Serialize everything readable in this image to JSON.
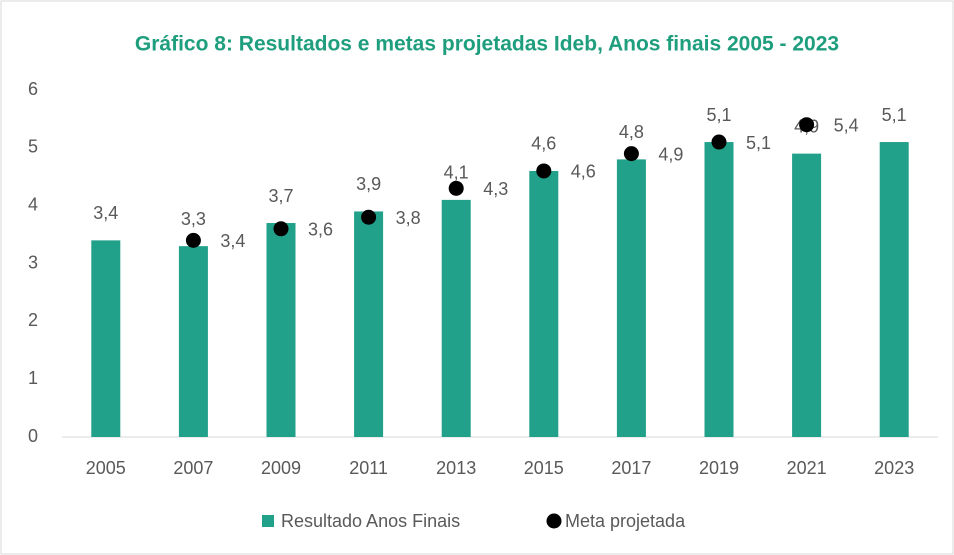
{
  "chart_data": {
    "type": "bar",
    "title": "Gráfico 8: Resultados e metas projetadas Ideb, Anos finais 2005 - 2023",
    "categories": [
      "2005",
      "2007",
      "2009",
      "2011",
      "2013",
      "2015",
      "2017",
      "2019",
      "2021",
      "2023"
    ],
    "series": [
      {
        "name": "Resultado Anos Finais",
        "type": "bar",
        "color": "#21a08a",
        "values": [
          3.4,
          3.3,
          3.7,
          3.9,
          4.1,
          4.6,
          4.8,
          5.1,
          4.9,
          5.1
        ],
        "value_labels": [
          "3,4",
          "3,3",
          "3,7",
          "3,9",
          "4,1",
          "4,6",
          "4,8",
          "5,1",
          "4,9",
          "5,1"
        ]
      },
      {
        "name": "Meta projetada",
        "type": "scatter",
        "color": "#000000",
        "values": [
          null,
          3.4,
          3.6,
          3.8,
          4.3,
          4.6,
          4.9,
          5.1,
          5.4,
          null
        ],
        "value_labels": [
          null,
          "3,4",
          "3,6",
          "3,8",
          "4,3",
          "4,6",
          "4,9",
          "5,1",
          "5,4",
          null
        ]
      }
    ],
    "ylim": [
      0,
      6
    ],
    "yticks": [
      0,
      1,
      2,
      3,
      4,
      5,
      6
    ],
    "grid": false,
    "legend": "bottom"
  }
}
